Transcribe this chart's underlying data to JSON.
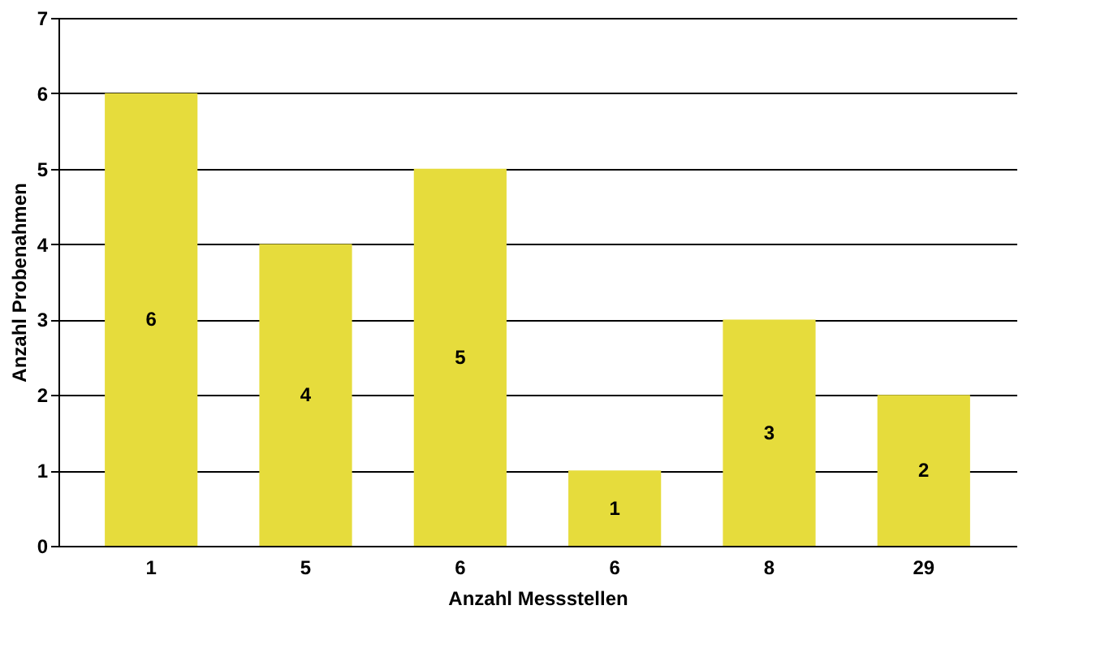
{
  "chart_data": {
    "type": "bar",
    "xlabel": "Anzahl Messstellen",
    "ylabel": "Anzahl Probenahmen",
    "categories": [
      "1",
      "5",
      "6",
      "6",
      "8",
      "29"
    ],
    "values": [
      6,
      4,
      5,
      1,
      3,
      2
    ],
    "color": "#e6dc3c",
    "ylim": [
      0,
      7
    ],
    "yticks": [
      0,
      1,
      2,
      3,
      4,
      5,
      6,
      7
    ],
    "grid": "y",
    "data_labels": true
  }
}
